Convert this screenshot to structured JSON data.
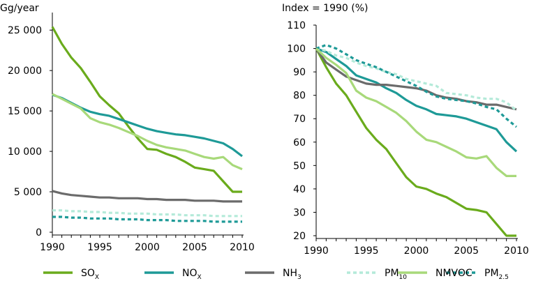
{
  "chart_data": [
    {
      "type": "line",
      "ylabel": "Gg/year",
      "x": [
        1990,
        1991,
        1992,
        1993,
        1994,
        1995,
        1996,
        1997,
        1998,
        1999,
        2000,
        2001,
        2002,
        2003,
        2004,
        2005,
        2006,
        2007,
        2008,
        2009,
        2010
      ],
      "xticks": [
        "1990",
        "1995",
        "2000",
        "2005",
        "2010"
      ],
      "yticks": [
        "0",
        "5 000",
        "10 000",
        "15 000",
        "20 000",
        "25 000"
      ],
      "ylim": [
        0,
        27000
      ],
      "series": [
        {
          "name": "SOx",
          "values": [
            25400,
            23300,
            21600,
            20300,
            18600,
            16800,
            15700,
            14700,
            13100,
            11600,
            10300,
            10200,
            9700,
            9300,
            8700,
            8000,
            7800,
            7600,
            6300,
            5000,
            5000
          ],
          "color": "#6aab1c",
          "dash": "solid"
        },
        {
          "name": "NOx",
          "values": [
            17000,
            16600,
            16000,
            15400,
            14900,
            14600,
            14400,
            14000,
            13600,
            13200,
            12800,
            12500,
            12300,
            12100,
            12000,
            11800,
            11600,
            11300,
            11000,
            10300,
            9400
          ],
          "color": "#1e9a97",
          "dash": "solid"
        },
        {
          "name": "NH3",
          "values": [
            5100,
            4800,
            4600,
            4500,
            4400,
            4300,
            4300,
            4200,
            4200,
            4200,
            4100,
            4100,
            4000,
            4000,
            4000,
            3900,
            3900,
            3900,
            3800,
            3800,
            3800
          ],
          "color": "#6b6b6b",
          "dash": "solid"
        },
        {
          "name": "PM10",
          "values": [
            2700,
            2700,
            2600,
            2600,
            2500,
            2500,
            2400,
            2400,
            2300,
            2300,
            2300,
            2200,
            2200,
            2200,
            2100,
            2100,
            2100,
            2000,
            2000,
            2000,
            2000
          ],
          "color": "#b4ead9",
          "dash": "dashed"
        },
        {
          "name": "PM2.5",
          "values": [
            1900,
            1900,
            1800,
            1800,
            1700,
            1700,
            1700,
            1600,
            1600,
            1600,
            1500,
            1500,
            1500,
            1400,
            1400,
            1400,
            1400,
            1300,
            1300,
            1300,
            1300
          ],
          "color": "#1e9a97",
          "dash": "dashed"
        },
        {
          "name": "NMVOC",
          "values": [
            17100,
            16500,
            15900,
            15300,
            14100,
            13600,
            13300,
            12900,
            12400,
            11900,
            11300,
            10800,
            10500,
            10300,
            10100,
            9700,
            9300,
            9100,
            9300,
            8300,
            7800
          ],
          "color": "#a8d97a",
          "dash": "solid"
        }
      ]
    },
    {
      "type": "line",
      "ylabel": "Index = 1990 (%)",
      "x": [
        1990,
        1991,
        1992,
        1993,
        1994,
        1995,
        1996,
        1997,
        1998,
        1999,
        2000,
        2001,
        2002,
        2003,
        2004,
        2005,
        2006,
        2007,
        2008,
        2009,
        2010
      ],
      "xticks": [
        "1990",
        "1995",
        "2000",
        "2005",
        "2010"
      ],
      "yticks": [
        "20",
        "30",
        "40",
        "50",
        "60",
        "70",
        "80",
        "90",
        "100",
        "110"
      ],
      "ylim": [
        20,
        110
      ],
      "series": [
        {
          "name": "SOx",
          "values": [
            100,
            92,
            85,
            80,
            73,
            66,
            61,
            57,
            51,
            45,
            41,
            40,
            38,
            36.5,
            34,
            31.5,
            31,
            30,
            25,
            20,
            20
          ],
          "color": "#6aab1c",
          "dash": "solid"
        },
        {
          "name": "NOx",
          "values": [
            100,
            98.5,
            95.5,
            92.5,
            88.5,
            87,
            85.5,
            83,
            81,
            78,
            75.5,
            74,
            72,
            71.5,
            71,
            70,
            68.5,
            67,
            65.5,
            60,
            56
          ],
          "color": "#1e9a97",
          "dash": "solid"
        },
        {
          "name": "NH3",
          "values": [
            100,
            94,
            91,
            88,
            86.5,
            85,
            84.5,
            84.5,
            84,
            83.5,
            83,
            82,
            80,
            79,
            78.5,
            77.5,
            77,
            76,
            76,
            75,
            74
          ],
          "color": "#6b6b6b",
          "dash": "solid"
        },
        {
          "name": "PM10",
          "values": [
            100,
            99,
            97,
            96,
            94,
            92.5,
            91.5,
            90,
            89,
            87,
            86,
            85,
            84,
            81,
            80.5,
            80,
            79,
            78.5,
            78.5,
            77,
            73.5
          ],
          "color": "#b4ead9",
          "dash": "dashed"
        },
        {
          "name": "PM2.5",
          "values": [
            100,
            101.5,
            100,
            97.5,
            95,
            93.5,
            92,
            90,
            88,
            86,
            84,
            81.5,
            79.5,
            78.5,
            78,
            77.5,
            76.5,
            75,
            74,
            70,
            66.5
          ],
          "color": "#1e9a97",
          "dash": "dashed"
        },
        {
          "name": "NMVOC",
          "values": [
            100,
            96,
            93,
            89.5,
            82,
            79,
            77.5,
            75,
            72.5,
            69,
            64.5,
            61,
            60,
            58,
            56,
            53.5,
            53,
            54,
            49,
            45.5,
            45.5
          ],
          "color": "#a8d97a",
          "dash": "solid"
        }
      ]
    }
  ],
  "legend": [
    {
      "base": "SO",
      "sub": "X",
      "color": "#6aab1c",
      "dash": "solid"
    },
    {
      "base": "NO",
      "sub": "X",
      "color": "#1e9a97",
      "dash": "solid"
    },
    {
      "base": "NH",
      "sub": "3",
      "color": "#6b6b6b",
      "dash": "solid"
    },
    {
      "base": "PM",
      "sub": "10",
      "color": "#b4ead9",
      "dash": "dashed"
    },
    {
      "base": "PM",
      "sub": "2.5",
      "color": "#1e9a97",
      "dash": "dashed"
    },
    {
      "base": "NMVOC",
      "sub": "",
      "color": "#a8d97a",
      "dash": "solid"
    }
  ]
}
